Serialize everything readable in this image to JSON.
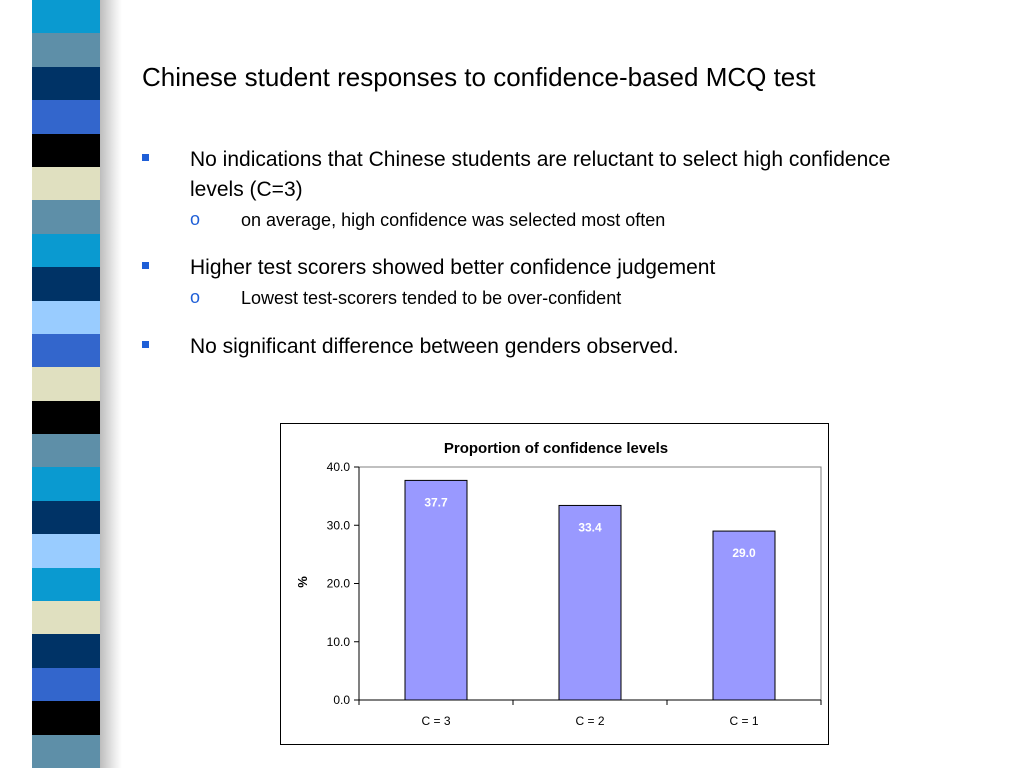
{
  "slide": {
    "title": "Chinese student responses to confidence-based MCQ test",
    "bullets": [
      {
        "text": "No indications that Chinese students are reluctant to select high confidence levels (C=3)",
        "sub": "on average, high confidence was selected most often"
      },
      {
        "text": "Higher test scorers showed better confidence judgement",
        "sub": "Lowest test-scorers tended to be over-confident"
      },
      {
        "text": "No significant difference between genders observed.",
        "sub": ""
      }
    ],
    "sub_marker": "o"
  },
  "colors": {
    "bar_fill": "#9999ff",
    "bullet_marker": "#1f5fd7",
    "stripe": [
      "#0a9ad0",
      "#5e8fa8",
      "#003366",
      "#3366cc",
      "#000000",
      "#e0e0c0",
      "#5e8fa8",
      "#0a9ad0",
      "#003366",
      "#99ccff",
      "#3366cc",
      "#e0e0c0",
      "#000000",
      "#5e8fa8",
      "#0a9ad0",
      "#003366",
      "#99ccff",
      "#0a9ad0",
      "#e0e0c0",
      "#003366",
      "#3366cc",
      "#000000",
      "#5e8fa8"
    ]
  },
  "chart_data": {
    "type": "bar",
    "title": "Proportion of confidence levels",
    "ylabel": "%",
    "xlabel": "",
    "categories": [
      "C = 3",
      "C = 2",
      "C = 1"
    ],
    "values": [
      37.7,
      33.4,
      29.0
    ],
    "value_labels": [
      "37.7",
      "33.4",
      "29.0"
    ],
    "ylim": [
      0,
      40
    ],
    "yticks": [
      "0.0",
      "10.0",
      "20.0",
      "30.0",
      "40.0"
    ],
    "grid": false,
    "legend": "none"
  }
}
